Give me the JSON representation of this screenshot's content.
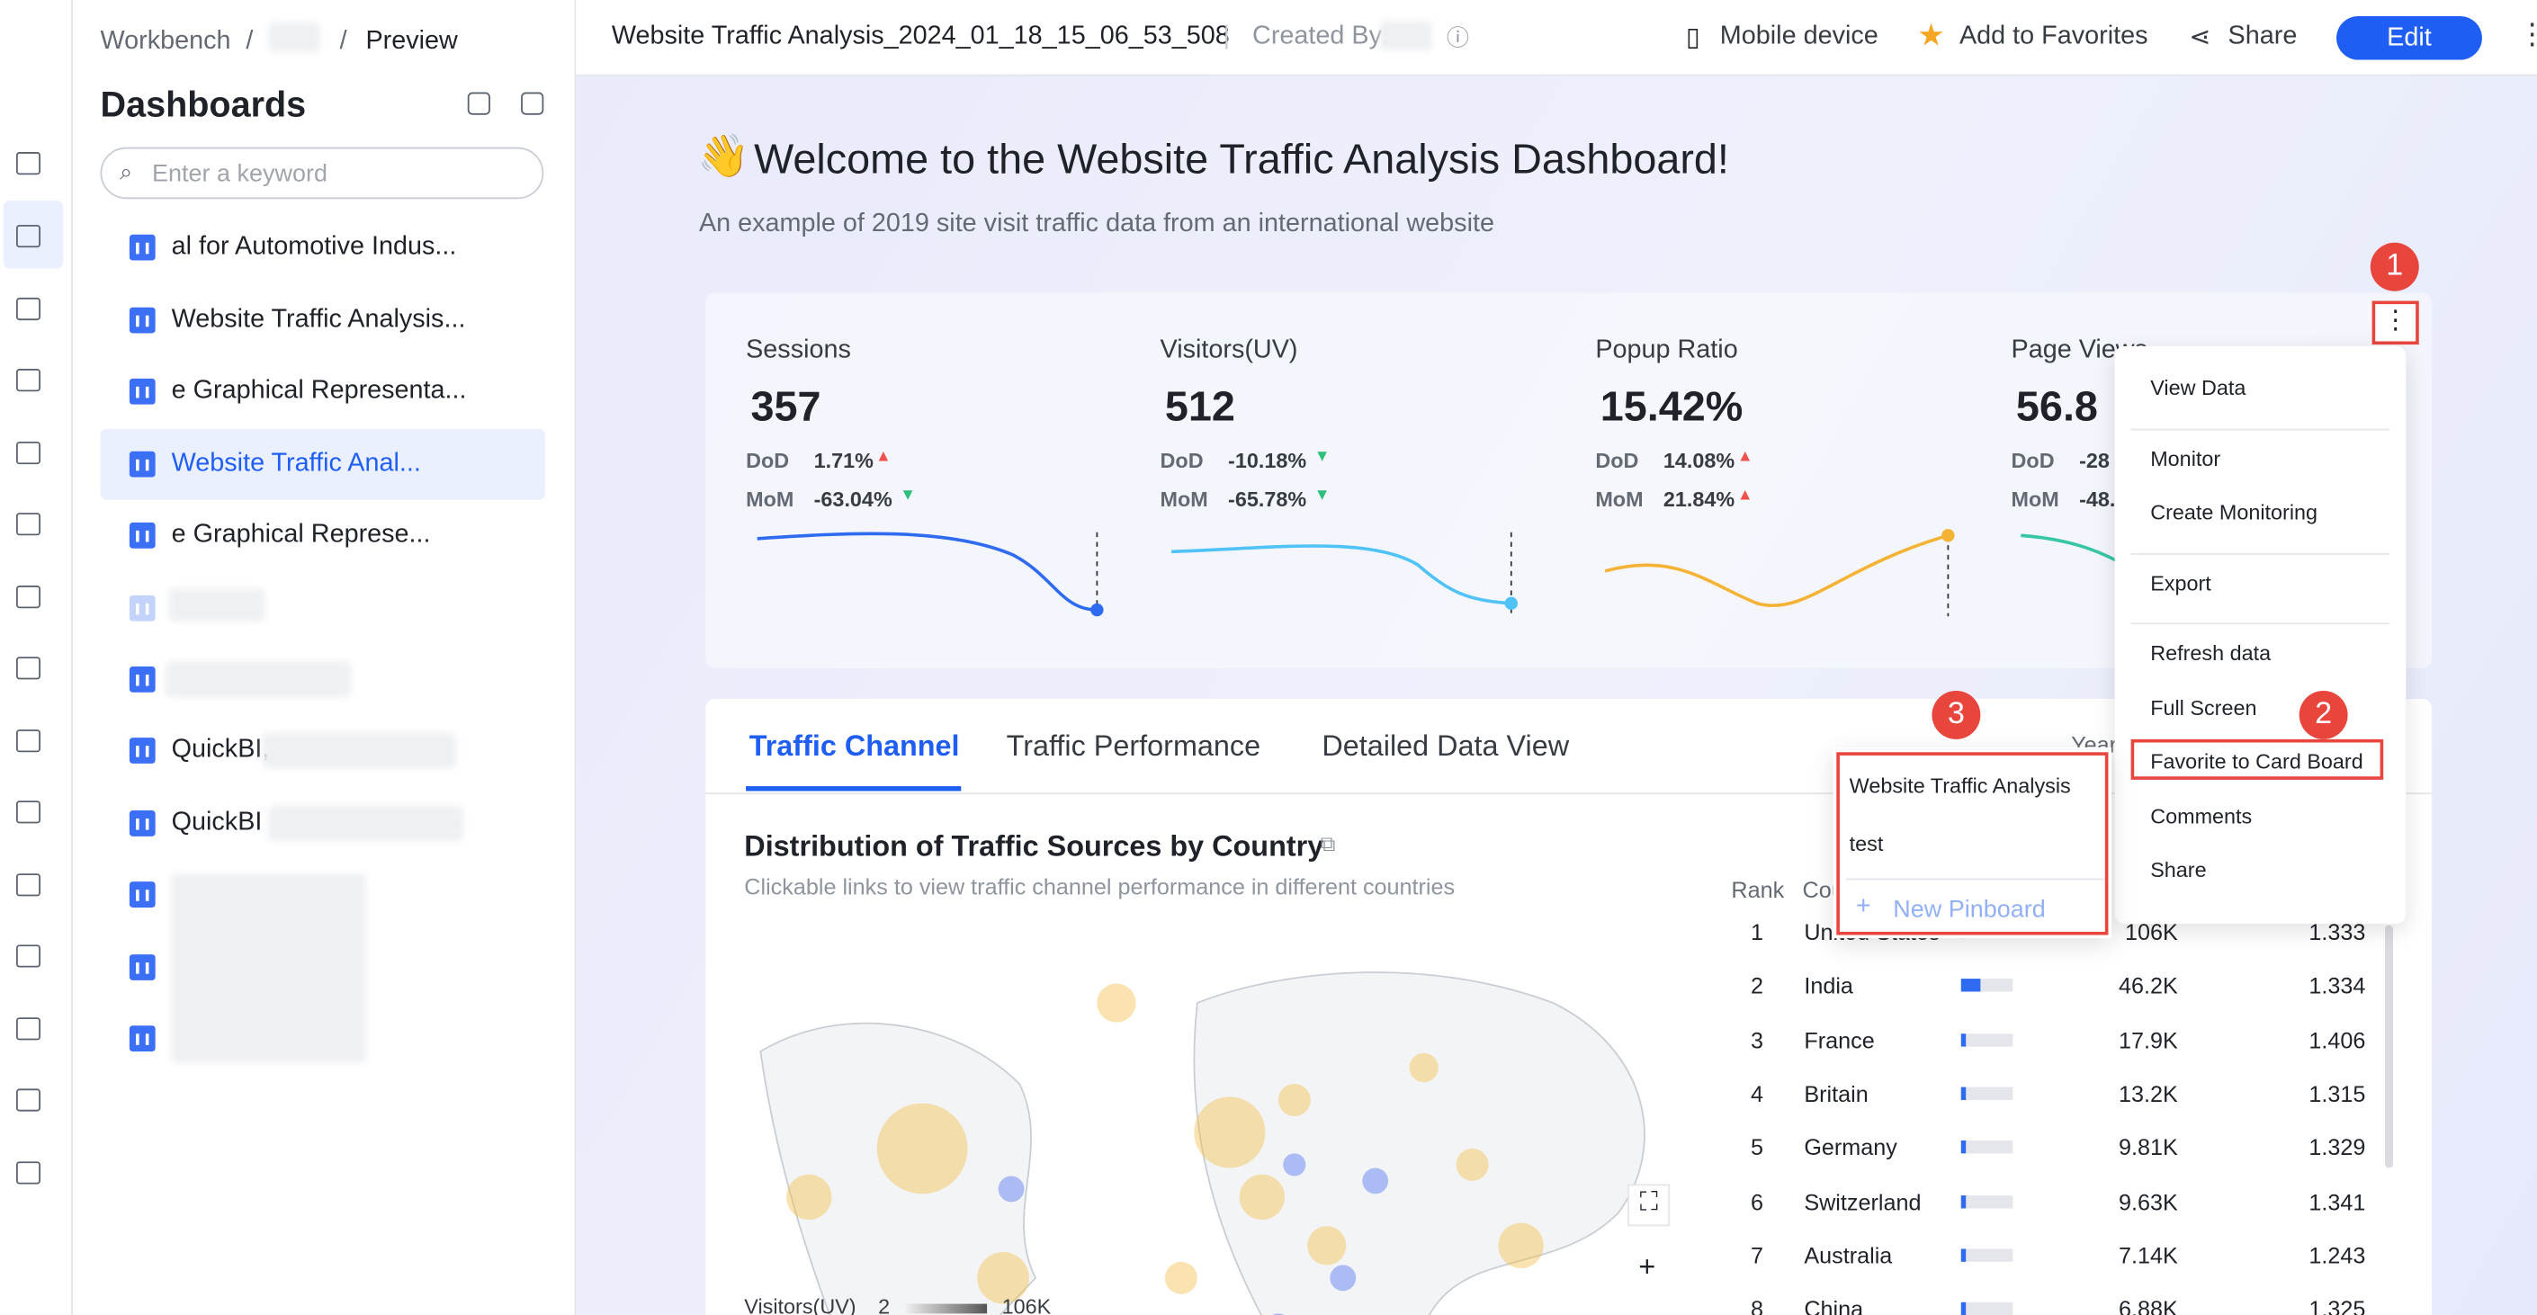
{
  "breadcrumb": [
    "Workbench",
    "Preview"
  ],
  "sidebar": {
    "title": "Dashboards",
    "search_placeholder": "Enter a keyword",
    "items": [
      {
        "label": "al for Automotive Indus..."
      },
      {
        "label": "Website Traffic Analysis..."
      },
      {
        "label": "e Graphical Representa..."
      },
      {
        "label": "Website Traffic Anal...",
        "star": true,
        "active": true
      },
      {
        "label": "e Graphical Represe...",
        "star": true
      },
      {
        "label": "QuickBI,"
      },
      {
        "label": "QuickBI"
      }
    ]
  },
  "header": {
    "title": "Website Traffic Analysis_2024_01_18_15_06_53_508",
    "created_by": "Created By:",
    "actions": [
      "Mobile device",
      "Add to Favorites",
      "Share"
    ],
    "edit": "Edit"
  },
  "dashboard": {
    "emoji": "👋",
    "title": "Welcome to the Website Traffic Analysis Dashboard!",
    "subtitle": "An example of 2019 site visit traffic data from an international website",
    "kpis": [
      {
        "label": "Sessions",
        "value": "357",
        "dod": "1.71%",
        "mom": "-63.04%"
      },
      {
        "label": "Visitors(UV)",
        "value": "512",
        "dod": "-10.18%",
        "mom": "-65.78%"
      },
      {
        "label": "Popup Ratio",
        "value": "15.42%",
        "dod": "14.08%",
        "mom": "21.84%"
      },
      {
        "label": "Page Views",
        "value": "56.8",
        "dod": "-28",
        "mom": "-48."
      }
    ],
    "dod_label": "DoD",
    "mom_label": "MoM",
    "tabs": [
      "Traffic Channel",
      "Traffic Performance",
      "Detailed Data View"
    ],
    "year_label": "Year",
    "chart": {
      "title": "Distribution of Traffic Sources by Country",
      "subtitle": "Clickable links to view traffic channel performance in different countries",
      "legend": {
        "label": "Visitors(UV)",
        "min": "2",
        "max": "106K"
      },
      "columns": [
        "Rank",
        "Country"
      ],
      "rows": [
        [
          "1",
          "United States",
          "106K",
          "1.333"
        ],
        [
          "2",
          "India",
          "46.2K",
          "1.334"
        ],
        [
          "3",
          "France",
          "17.9K",
          "1.406"
        ],
        [
          "4",
          "Britain",
          "13.2K",
          "1.315"
        ],
        [
          "5",
          "Germany",
          "9.81K",
          "1.329"
        ],
        [
          "6",
          "Switzerland",
          "9.63K",
          "1.341"
        ],
        [
          "7",
          "Australia",
          "7.14K",
          "1.243"
        ],
        [
          "8",
          "China",
          "6.88K",
          "1.325"
        ]
      ]
    }
  },
  "menu": {
    "groups": [
      [
        "View Data"
      ],
      [
        "Monitor",
        "Create Monitoring"
      ],
      [
        "Export"
      ],
      [
        "Refresh data",
        "Full Screen",
        "Favorite to Card Board",
        "Comments",
        "Share"
      ]
    ]
  },
  "pinboard": {
    "items": [
      "Website Traffic Analysis",
      "test"
    ],
    "new": "New Pinboard"
  },
  "steps": [
    "1",
    "2",
    "3"
  ]
}
